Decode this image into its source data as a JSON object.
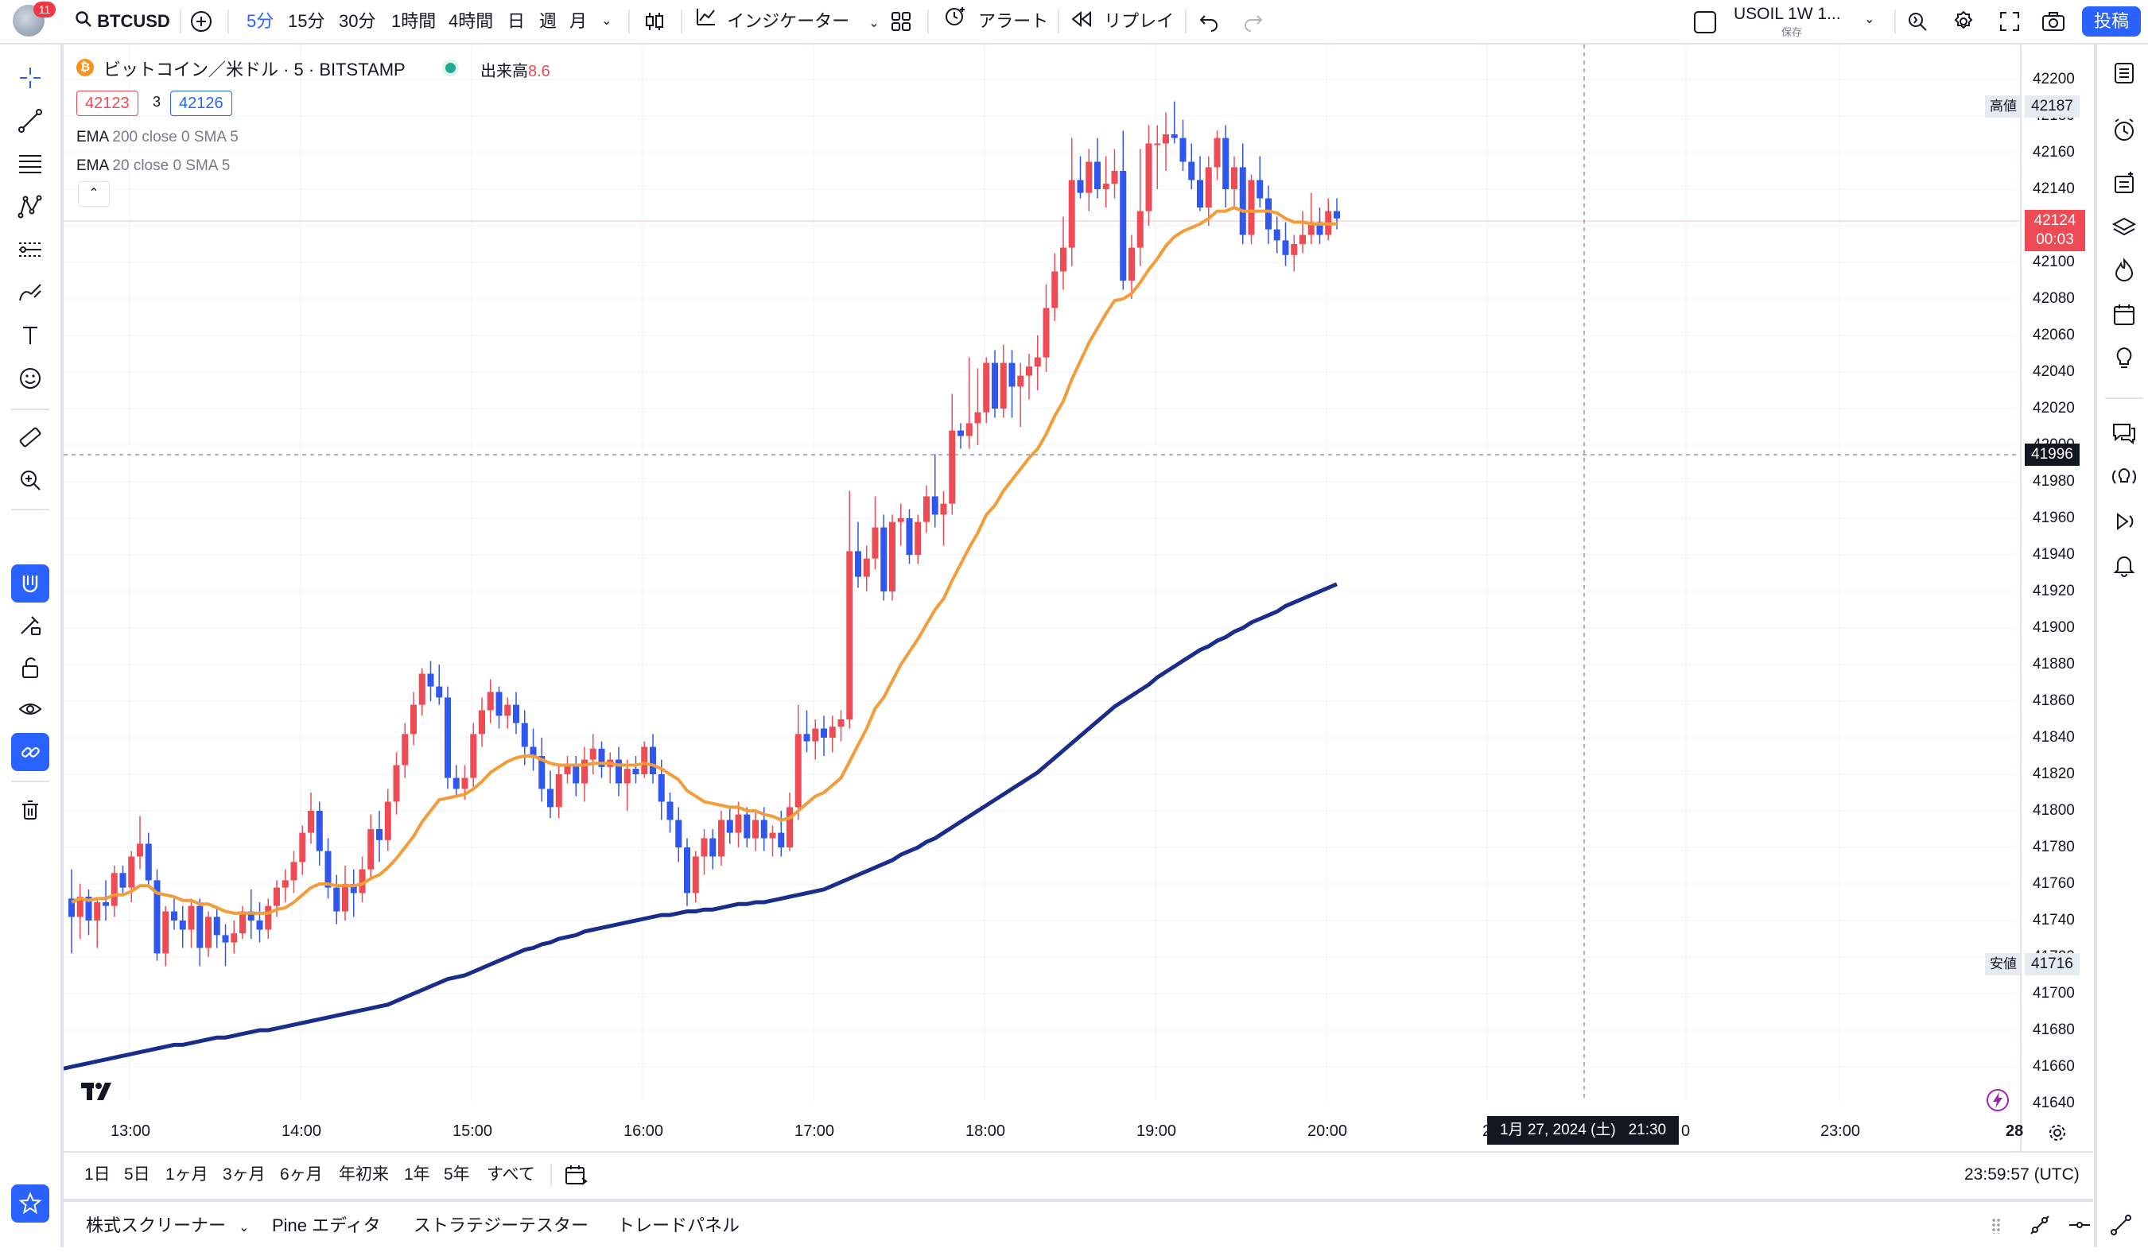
{
  "topbar": {
    "notification_count": "11",
    "symbol": "BTCUSD",
    "intervals": [
      "5分",
      "15分",
      "30分",
      "1時間",
      "4時間",
      "日",
      "週",
      "月"
    ],
    "indicators_label": "インジケーター",
    "alert_label": "アラート",
    "replay_label": "リプレイ",
    "layout_name": "USOIL 1W 1...",
    "layout_status": "保存",
    "post_label": "投稿"
  },
  "legend": {
    "title": "ビットコイン／米ドル · 5 · BITSTAMP",
    "volume_label": "出来高",
    "volume_value": "8.6",
    "bid": "42123",
    "spread": "3",
    "ask": "42126",
    "indicators": [
      {
        "name": "EMA",
        "params": "200 close 0 SMA 5"
      },
      {
        "name": "EMA",
        "params": "20 close 0 SMA 5"
      }
    ]
  },
  "price_axis": {
    "ticks": [
      "42200",
      "42180",
      "42160",
      "42140",
      "42120",
      "42100",
      "42080",
      "42060",
      "42040",
      "42020",
      "42000",
      "41980",
      "41960",
      "41940",
      "41920",
      "41900",
      "41880",
      "41860",
      "41840",
      "41820",
      "41800",
      "41780",
      "41760",
      "41740",
      "41720",
      "41700",
      "41680",
      "41660",
      "41640"
    ],
    "high_label": "高値",
    "high_value": "42187",
    "low_label": "安値",
    "low_value": "41716",
    "last_price": "42124",
    "countdown": "00:03",
    "crosshair_price": "41996"
  },
  "time_axis": {
    "labels": [
      "13:00",
      "14:00",
      "15:00",
      "16:00",
      "17:00",
      "18:00",
      "19:00",
      "20:00",
      "2",
      "0",
      "23:00",
      "28"
    ],
    "crosshair_time": "1月 27, 2024 (土)   21:30"
  },
  "range_bar": {
    "ranges": [
      "1日",
      "5日",
      "1ヶ月",
      "3ヶ月",
      "6ヶ月",
      "年初来",
      "1年",
      "5年",
      "すべて"
    ],
    "clock": "23:59:57 (UTC)"
  },
  "bottom_panel": {
    "tabs": [
      "株式スクリーナー",
      "Pine エディタ",
      "ストラテジーテスター",
      "トレードパネル"
    ]
  },
  "colors": {
    "up": "#ef4b55",
    "down": "#2f57ef",
    "ema20": "#f39c3a",
    "ema200": "#1a2d8c",
    "accent": "#2962ff"
  },
  "chart_data": {
    "type": "candlestick",
    "symbol": "BTCUSD",
    "ylim": [
      41630,
      42210
    ],
    "x_range": [
      "12:40",
      "23:59"
    ],
    "candles": [
      [
        41752,
        41768,
        41722,
        41742
      ],
      [
        41742,
        41760,
        41730,
        41753
      ],
      [
        41753,
        41757,
        41732,
        41740
      ],
      [
        41740,
        41752,
        41725,
        41750
      ],
      [
        41750,
        41762,
        41740,
        41748
      ],
      [
        41748,
        41770,
        41742,
        41766
      ],
      [
        41766,
        41770,
        41755,
        41758
      ],
      [
        41758,
        41778,
        41750,
        41775
      ],
      [
        41775,
        41797,
        41768,
        41782
      ],
      [
        41782,
        41788,
        41758,
        41762
      ],
      [
        41762,
        41768,
        41718,
        41722
      ],
      [
        41722,
        41748,
        41715,
        41745
      ],
      [
        41745,
        41752,
        41735,
        41740
      ],
      [
        41740,
        41748,
        41725,
        41735
      ],
      [
        41735,
        41752,
        41725,
        41748
      ],
      [
        41748,
        41752,
        41715,
        41725
      ],
      [
        41725,
        41745,
        41720,
        41742
      ],
      [
        41742,
        41748,
        41725,
        41732
      ],
      [
        41732,
        41738,
        41715,
        41728
      ],
      [
        41728,
        41740,
        41722,
        41733
      ],
      [
        41733,
        41748,
        41730,
        41745
      ],
      [
        41745,
        41757,
        41730,
        41740
      ],
      [
        41740,
        41750,
        41728,
        41735
      ],
      [
        41735,
        41752,
        41730,
        41748
      ],
      [
        41748,
        41762,
        41742,
        41758
      ],
      [
        41758,
        41768,
        41750,
        41762
      ],
      [
        41762,
        41778,
        41755,
        41772
      ],
      [
        41772,
        41792,
        41765,
        41788
      ],
      [
        41788,
        41810,
        41782,
        41800
      ],
      [
        41800,
        41805,
        41770,
        41778
      ],
      [
        41778,
        41785,
        41752,
        41758
      ],
      [
        41758,
        41765,
        41738,
        41745
      ],
      [
        41745,
        41770,
        41740,
        41760
      ],
      [
        41760,
        41768,
        41742,
        41755
      ],
      [
        41755,
        41775,
        41750,
        41768
      ],
      [
        41768,
        41798,
        41762,
        41790
      ],
      [
        41790,
        41800,
        41772,
        41784
      ],
      [
        41784,
        41812,
        41778,
        41805
      ],
      [
        41805,
        41832,
        41798,
        41825
      ],
      [
        41825,
        41848,
        41818,
        41842
      ],
      [
        41842,
        41865,
        41836,
        41858
      ],
      [
        41858,
        41878,
        41852,
        41875
      ],
      [
        41875,
        41882,
        41860,
        41868
      ],
      [
        41868,
        41880,
        41858,
        41862
      ],
      [
        41862,
        41868,
        41812,
        41818
      ],
      [
        41818,
        41825,
        41808,
        41812
      ],
      [
        41812,
        41825,
        41806,
        41818
      ],
      [
        41818,
        41848,
        41812,
        41842
      ],
      [
        41842,
        41862,
        41835,
        41855
      ],
      [
        41855,
        41872,
        41848,
        41865
      ],
      [
        41865,
        41868,
        41845,
        41852
      ],
      [
        41852,
        41862,
        41845,
        41858
      ],
      [
        41858,
        41865,
        41842,
        41848
      ],
      [
        41848,
        41855,
        41825,
        41835
      ],
      [
        41835,
        41845,
        41822,
        41830
      ],
      [
        41830,
        41840,
        41805,
        41812
      ],
      [
        41812,
        41822,
        41796,
        41802
      ],
      [
        41802,
        41825,
        41796,
        41820
      ],
      [
        41820,
        41830,
        41815,
        41825
      ],
      [
        41825,
        41830,
        41808,
        41815
      ],
      [
        41815,
        41835,
        41805,
        41828
      ],
      [
        41828,
        41842,
        41820,
        41834
      ],
      [
        41834,
        41838,
        41818,
        41824
      ],
      [
        41824,
        41832,
        41815,
        41828
      ],
      [
        41828,
        41835,
        41808,
        41815
      ],
      [
        41815,
        41828,
        41800,
        41823
      ],
      [
        41823,
        41830,
        41815,
        41820
      ],
      [
        41820,
        41838,
        41818,
        41835
      ],
      [
        41835,
        41842,
        41815,
        41820
      ],
      [
        41820,
        41828,
        41795,
        41805
      ],
      [
        41805,
        41810,
        41788,
        41795
      ],
      [
        41795,
        41802,
        41772,
        41780
      ],
      [
        41780,
        41785,
        41748,
        41755
      ],
      [
        41755,
        41778,
        41750,
        41775
      ],
      [
        41775,
        41790,
        41765,
        41785
      ],
      [
        41785,
        41790,
        41768,
        41775
      ],
      [
        41775,
        41800,
        41770,
        41795
      ],
      [
        41795,
        41802,
        41782,
        41788
      ],
      [
        41788,
        41805,
        41780,
        41798
      ],
      [
        41798,
        41802,
        41780,
        41785
      ],
      [
        41785,
        41800,
        41778,
        41795
      ],
      [
        41795,
        41802,
        41778,
        41785
      ],
      [
        41785,
        41792,
        41775,
        41788
      ],
      [
        41788,
        41800,
        41775,
        41780
      ],
      [
        41780,
        41810,
        41778,
        41802
      ],
      [
        41802,
        41858,
        41795,
        41842
      ],
      [
        41842,
        41855,
        41832,
        41838
      ],
      [
        41838,
        41850,
        41828,
        41845
      ],
      [
        41845,
        41852,
        41830,
        41840
      ],
      [
        41840,
        41852,
        41832,
        41846
      ],
      [
        41846,
        41855,
        41838,
        41850
      ],
      [
        41850,
        41975,
        41845,
        41942
      ],
      [
        41942,
        41958,
        41922,
        41928
      ],
      [
        41928,
        41945,
        41920,
        41938
      ],
      [
        41938,
        41972,
        41932,
        41955
      ],
      [
        41955,
        41962,
        41915,
        41920
      ],
      [
        41920,
        41962,
        41915,
        41958
      ],
      [
        41958,
        41968,
        41945,
        41960
      ],
      [
        41960,
        41965,
        41935,
        41940
      ],
      [
        41940,
        41962,
        41935,
        41958
      ],
      [
        41958,
        41978,
        41952,
        41972
      ],
      [
        41972,
        41995,
        41955,
        41962
      ],
      [
        41962,
        41975,
        41945,
        41968
      ],
      [
        41968,
        42028,
        41962,
        42008
      ],
      [
        42008,
        42012,
        41998,
        42005
      ],
      [
        42005,
        42048,
        41998,
        42012
      ],
      [
        42012,
        42042,
        42000,
        42018
      ],
      [
        42018,
        42048,
        42012,
        42045
      ],
      [
        42045,
        42052,
        42015,
        42020
      ],
      [
        42020,
        42055,
        42015,
        42045
      ],
      [
        42045,
        42052,
        42015,
        42032
      ],
      [
        42032,
        42045,
        42010,
        42038
      ],
      [
        42038,
        42050,
        42025,
        42043
      ],
      [
        42043,
        42060,
        42030,
        42048
      ],
      [
        42048,
        42088,
        42040,
        42075
      ],
      [
        42075,
        42105,
        42068,
        42095
      ],
      [
        42095,
        42125,
        42085,
        42108
      ],
      [
        42108,
        42168,
        42098,
        42145
      ],
      [
        42145,
        42158,
        42135,
        42138
      ],
      [
        42138,
        42162,
        42128,
        42155
      ],
      [
        42155,
        42168,
        42135,
        42140
      ],
      [
        42140,
        42158,
        42130,
        42143
      ],
      [
        42143,
        42162,
        42135,
        42150
      ],
      [
        42150,
        42172,
        42085,
        42090
      ],
      [
        42090,
        42115,
        42080,
        42108
      ],
      [
        42108,
        42162,
        42098,
        42128
      ],
      [
        42128,
        42175,
        42120,
        42165
      ],
      [
        42165,
        42175,
        42140,
        42165
      ],
      [
        42165,
        42182,
        42150,
        42170
      ],
      [
        42170,
        42188,
        42165,
        42168
      ],
      [
        42168,
        42178,
        42150,
        42155
      ],
      [
        42155,
        42165,
        42140,
        42145
      ],
      [
        42145,
        42158,
        42128,
        42130
      ],
      [
        42130,
        42158,
        42120,
        42152
      ],
      [
        42152,
        42172,
        42145,
        42168
      ],
      [
        42168,
        42175,
        42130,
        42140
      ],
      [
        42140,
        42158,
        42130,
        42152
      ],
      [
        42152,
        42165,
        42110,
        42115
      ],
      [
        42115,
        42148,
        42110,
        42145
      ],
      [
        42145,
        42158,
        42130,
        42135
      ],
      [
        42135,
        42142,
        42110,
        42118
      ],
      [
        42118,
        42125,
        42105,
        42112
      ],
      [
        42112,
        42122,
        42098,
        42104
      ],
      [
        42104,
        42115,
        42095,
        42110
      ],
      [
        42110,
        42128,
        42105,
        42115
      ],
      [
        42115,
        42138,
        42110,
        42122
      ],
      [
        42122,
        42130,
        42110,
        42115
      ],
      [
        42115,
        42135,
        42112,
        42128
      ],
      [
        42128,
        42135,
        42118,
        42124
      ]
    ],
    "series": [
      {
        "name": "EMA 20",
        "values": [
          41750,
          41752,
          41751,
          41752,
          41752,
          41754,
          41754,
          41756,
          41759,
          41759,
          41755,
          41754,
          41753,
          41751,
          41751,
          41749,
          41749,
          41747,
          41745,
          41744,
          41744,
          41744,
          41744,
          41744,
          41746,
          41747,
          41750,
          41754,
          41758,
          41760,
          41760,
          41759,
          41759,
          41759,
          41760,
          41763,
          41765,
          41769,
          41774,
          41780,
          41786,
          41794,
          41800,
          41806,
          41807,
          41808,
          41809,
          41812,
          41816,
          41821,
          41824,
          41827,
          41829,
          41830,
          41830,
          41828,
          41826,
          41825,
          41825,
          41825,
          41825,
          41826,
          41826,
          41826,
          41825,
          41825,
          41825,
          41826,
          41825,
          41823,
          41820,
          41817,
          41811,
          41808,
          41805,
          41804,
          41803,
          41802,
          41802,
          41800,
          41800,
          41798,
          41797,
          41795,
          41796,
          41800,
          41804,
          41808,
          41810,
          41814,
          41818,
          41827,
          41836,
          41845,
          41856,
          41862,
          41871,
          41880,
          41887,
          41894,
          41902,
          41910,
          41916,
          41926,
          41935,
          41944,
          41952,
          41962,
          41967,
          41975,
          41981,
          41987,
          41993,
          41998,
          42006,
          42016,
          42024,
          42036,
          42046,
          42056,
          42064,
          42072,
          42079,
          42080,
          42083,
          42089,
          42096,
          42102,
          42109,
          42114,
          42117,
          42119,
          42121,
          42124,
          42128,
          42128,
          42130,
          42128,
          42128,
          42128,
          42128,
          42127,
          42124,
          42122,
          42122,
          42121,
          42121,
          42121,
          42121
        ]
      },
      {
        "name": "EMA 200",
        "values": [
          41660,
          41661,
          41662,
          41663,
          41664,
          41665,
          41666,
          41667,
          41668,
          41669,
          41670,
          41671,
          41672,
          41672,
          41673,
          41674,
          41675,
          41676,
          41676,
          41677,
          41678,
          41679,
          41680,
          41680,
          41681,
          41682,
          41683,
          41684,
          41685,
          41686,
          41687,
          41688,
          41689,
          41690,
          41691,
          41692,
          41693,
          41694,
          41696,
          41698,
          41700,
          41702,
          41704,
          41706,
          41708,
          41709,
          41710,
          41712,
          41714,
          41716,
          41718,
          41720,
          41722,
          41724,
          41725,
          41727,
          41728,
          41730,
          41731,
          41732,
          41734,
          41735,
          41736,
          41737,
          41738,
          41739,
          41740,
          41741,
          41742,
          41743,
          41743,
          41744,
          41745,
          41745,
          41746,
          41746,
          41747,
          41748,
          41749,
          41749,
          41750,
          41750,
          41751,
          41752,
          41753,
          41754,
          41755,
          41756,
          41757,
          41759,
          41761,
          41763,
          41765,
          41767,
          41769,
          41771,
          41773,
          41776,
          41778,
          41780,
          41783,
          41785,
          41788,
          41791,
          41794,
          41797,
          41800,
          41803,
          41806,
          41809,
          41812,
          41815,
          41818,
          41821,
          41825,
          41829,
          41833,
          41837,
          41841,
          41845,
          41849,
          41853,
          41857,
          41860,
          41863,
          41866,
          41869,
          41873,
          41876,
          41879,
          41882,
          41885,
          41888,
          41890,
          41893,
          41895,
          41898,
          41900,
          41903,
          41905,
          41907,
          41909,
          41912,
          41914,
          41916,
          41918,
          41920,
          41922,
          41924
        ]
      }
    ]
  }
}
